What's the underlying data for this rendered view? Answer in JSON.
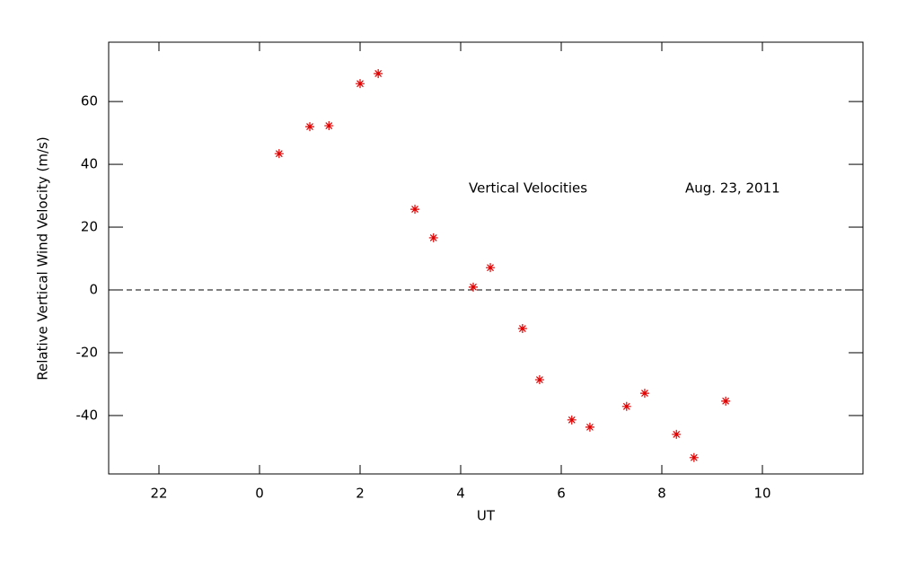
{
  "chart_data": {
    "type": "scatter",
    "x_label": "UT",
    "y_label": "Relative Vertical Wind Velocity (m/s)",
    "annotations": [
      "Vertical Velocities",
      "Aug. 23, 2011"
    ],
    "xlim": [
      21,
      36
    ],
    "xticks": [
      22,
      {
        "value": 24,
        "label": "0"
      },
      {
        "value": 26,
        "label": "2"
      },
      {
        "value": 28,
        "label": "4"
      },
      {
        "value": 30,
        "label": "6"
      },
      {
        "value": 32,
        "label": "8"
      },
      {
        "value": 34,
        "label": "10"
      }
    ],
    "ylim": [
      -58.6,
      78.9
    ],
    "yticks": [
      -40,
      -20,
      0,
      20,
      40,
      60
    ],
    "reference_line": 0,
    "series": [
      {
        "color": "#e00000",
        "x": [
          24.39,
          25.0,
          25.38,
          26.0,
          26.36,
          27.09,
          27.46,
          28.25,
          28.59,
          29.23,
          29.57,
          30.21,
          30.57,
          31.3,
          31.66,
          32.29,
          32.64,
          33.27
        ],
        "values": [
          43.4,
          52.0,
          52.3,
          65.7,
          68.9,
          25.7,
          16.6,
          0.9,
          7.1,
          -12.3,
          -28.6,
          -41.4,
          -43.7,
          -37.1,
          -32.9,
          -46.0,
          -53.4,
          -35.4
        ]
      }
    ]
  }
}
